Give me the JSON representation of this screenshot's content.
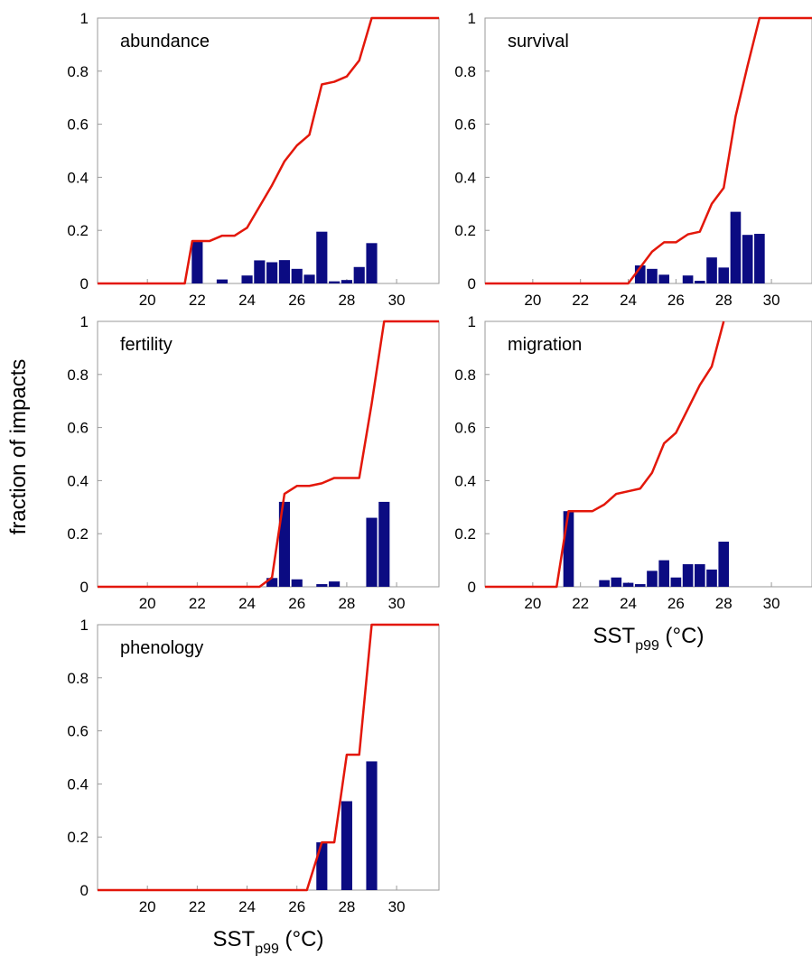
{
  "chart_data": [
    {
      "type": "bar",
      "label": "abundance",
      "xlim": [
        18,
        31.7
      ],
      "ylim": [
        0,
        1
      ],
      "xticks": [
        20,
        22,
        24,
        26,
        28,
        30
      ],
      "yticks": [
        0,
        0.2,
        0.4,
        0.6,
        0.8,
        1
      ],
      "bars": {
        "x": [
          22,
          23,
          24,
          24.5,
          25,
          25.5,
          26,
          26.5,
          27,
          27.5,
          28,
          28.5,
          29
        ],
        "values": [
          0.16,
          0.015,
          0.03,
          0.087,
          0.08,
          0.088,
          0.055,
          0.033,
          0.195,
          0.008,
          0.013,
          0.062,
          0.152
        ]
      },
      "line": {
        "x": [
          18,
          21.5,
          21.8,
          22.5,
          23,
          23.5,
          24,
          24.5,
          25,
          25.5,
          26,
          26.5,
          27,
          27.5,
          28,
          28.5,
          29,
          31.7
        ],
        "y": [
          0,
          0,
          0.16,
          0.16,
          0.18,
          0.18,
          0.21,
          0.29,
          0.37,
          0.46,
          0.52,
          0.56,
          0.75,
          0.76,
          0.78,
          0.84,
          1,
          1
        ]
      }
    },
    {
      "type": "bar",
      "label": "survival",
      "xlim": [
        18,
        31.7
      ],
      "ylim": [
        0,
        1
      ],
      "xticks": [
        20,
        22,
        24,
        26,
        28,
        30
      ],
      "yticks": [
        0,
        0.2,
        0.4,
        0.6,
        0.8,
        1
      ],
      "bars": {
        "x": [
          24.5,
          25,
          25.5,
          26.5,
          27,
          27.5,
          28,
          28.5,
          29,
          29.5
        ],
        "values": [
          0.068,
          0.055,
          0.033,
          0.03,
          0.01,
          0.098,
          0.06,
          0.27,
          0.183,
          0.187
        ]
      },
      "line": {
        "x": [
          18,
          24,
          24.5,
          25,
          25.5,
          26,
          26.5,
          27,
          27.5,
          28,
          28.5,
          29,
          29.5,
          31.7
        ],
        "y": [
          0,
          0,
          0.06,
          0.12,
          0.155,
          0.155,
          0.185,
          0.195,
          0.3,
          0.36,
          0.63,
          0.82,
          1,
          1
        ]
      }
    },
    {
      "type": "bar",
      "label": "fertility",
      "xlim": [
        18,
        31.7
      ],
      "ylim": [
        0,
        1
      ],
      "xticks": [
        20,
        22,
        24,
        26,
        28,
        30
      ],
      "yticks": [
        0,
        0.2,
        0.4,
        0.6,
        0.8,
        1
      ],
      "bars": {
        "x": [
          25,
          25.5,
          26,
          27,
          27.5,
          29,
          29.5
        ],
        "values": [
          0.033,
          0.32,
          0.028,
          0.01,
          0.02,
          0.26,
          0.32
        ]
      },
      "line": {
        "x": [
          18,
          24.5,
          25,
          25.5,
          26,
          26.5,
          27,
          27.5,
          28,
          28.5,
          29,
          29.5,
          31.7
        ],
        "y": [
          0,
          0,
          0.035,
          0.35,
          0.38,
          0.38,
          0.39,
          0.41,
          0.41,
          0.41,
          0.69,
          1,
          1
        ]
      }
    },
    {
      "type": "bar",
      "label": "migration",
      "xlim": [
        18,
        31.7
      ],
      "ylim": [
        0,
        1
      ],
      "xticks": [
        20,
        22,
        24,
        26,
        28,
        30
      ],
      "yticks": [
        0,
        0.2,
        0.4,
        0.6,
        0.8,
        1
      ],
      "xlabel_main": "SST",
      "xlabel_sub": "p99",
      "xlabel_tail": " (°C)",
      "bars": {
        "x": [
          21.5,
          23,
          23.5,
          24,
          24.5,
          25,
          25.5,
          26,
          26.5,
          27,
          27.5,
          28
        ],
        "values": [
          0.285,
          0.025,
          0.035,
          0.015,
          0.01,
          0.06,
          0.1,
          0.035,
          0.085,
          0.085,
          0.065,
          0.17
        ]
      },
      "line": {
        "x": [
          18,
          21,
          21.5,
          22,
          22.5,
          23,
          23.5,
          24,
          24.5,
          25,
          25.5,
          26,
          26.5,
          27,
          27.5,
          28
        ],
        "y": [
          0,
          0,
          0.285,
          0.285,
          0.285,
          0.31,
          0.35,
          0.36,
          0.37,
          0.43,
          0.54,
          0.58,
          0.67,
          0.76,
          0.83,
          1
        ]
      }
    },
    {
      "type": "bar",
      "label": "phenology",
      "xlim": [
        18,
        31.7
      ],
      "ylim": [
        0,
        1
      ],
      "xticks": [
        20,
        22,
        24,
        26,
        28,
        30
      ],
      "yticks": [
        0,
        0.2,
        0.4,
        0.6,
        0.8,
        1
      ],
      "xlabel_main": "SST",
      "xlabel_sub": "p99",
      "xlabel_tail": " (°C)",
      "bars": {
        "x": [
          27,
          28,
          29
        ],
        "values": [
          0.18,
          0.335,
          0.485
        ]
      },
      "line": {
        "x": [
          18,
          26.4,
          27,
          27.5,
          28,
          28.5,
          29,
          31.7
        ],
        "y": [
          0,
          0,
          0.18,
          0.18,
          0.51,
          0.51,
          1,
          1
        ]
      }
    }
  ],
  "ylabel": "fraction of impacts",
  "colors": {
    "bars": "#0b0b82",
    "line": "#e3170a",
    "frame": "#9a9a9a"
  }
}
